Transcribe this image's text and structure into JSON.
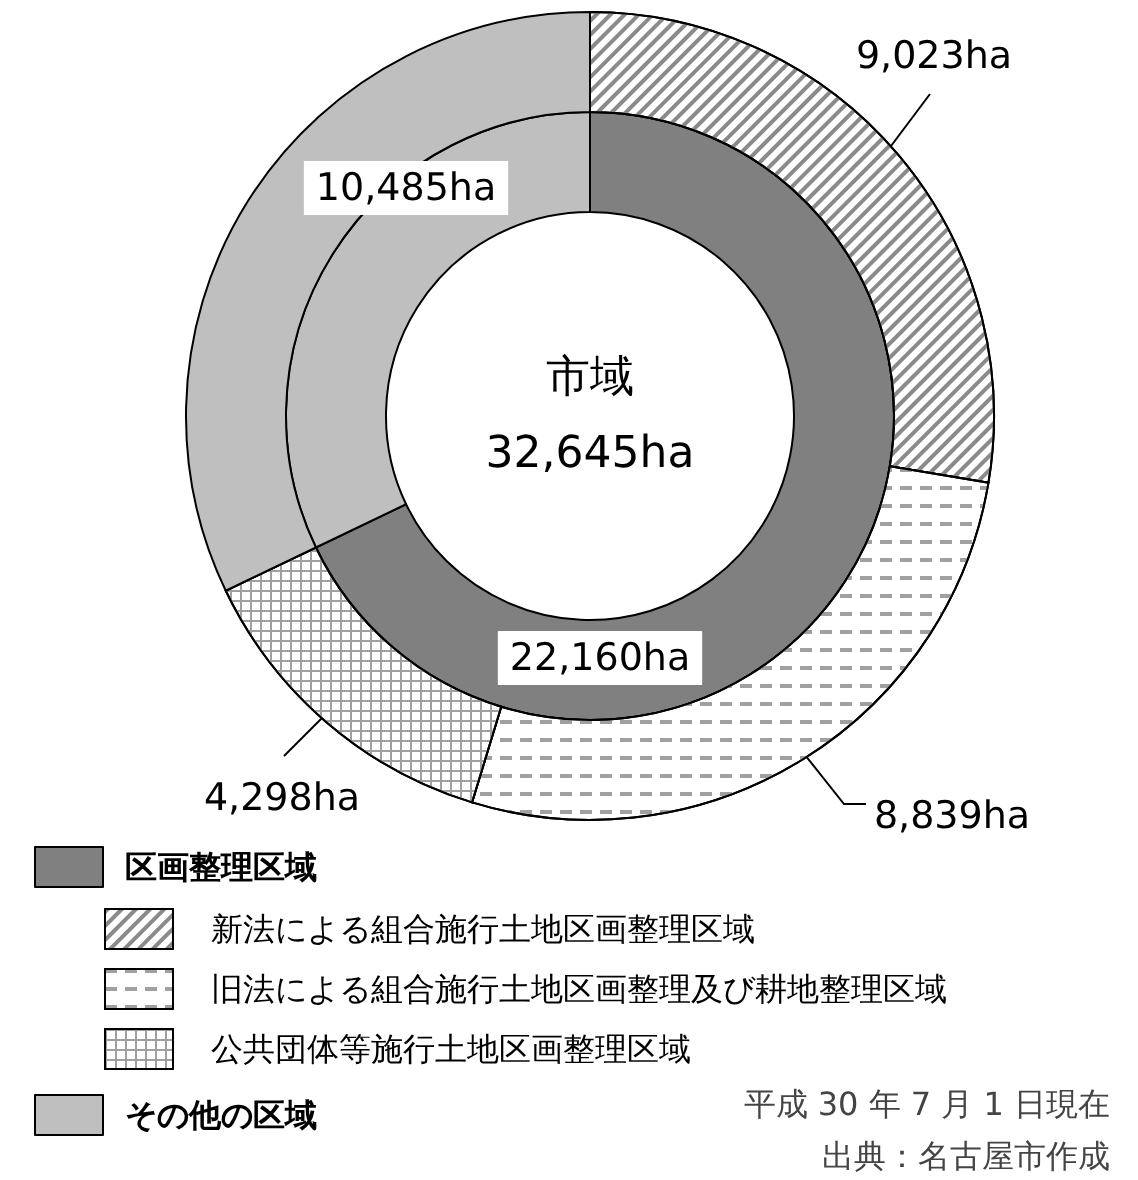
{
  "chart_data": {
    "type": "donut",
    "title": "市域\n32,645ha",
    "categories": [
      "区画整理区域",
      "新法による組合施行土地区画整理区域",
      "旧法による組合施行土地区画整理及び耕地整理区域",
      "公共団体等施行土地区画整理区域",
      "その他の区域"
    ],
    "series": [
      {
        "values": [
          22160,
          null,
          null,
          null,
          10485
        ],
        "value_labels": [
          "22,160ha",
          null,
          null,
          null,
          "10,485ha"
        ]
      },
      {
        "values": [
          null,
          9023,
          8839,
          4298,
          10485
        ],
        "value_labels": [
          null,
          "9,023ha",
          "8,839ha",
          "4,298ha",
          null
        ]
      }
    ],
    "colors": [
      "#808080",
      "#ffffff",
      "#ffffff",
      "#ffffff",
      "#bfbfbf"
    ],
    "legend": "bottom left",
    "annotations": [
      "平成 30 年 7 月 1 日現在",
      "出典：名古屋市作成"
    ]
  }
}
